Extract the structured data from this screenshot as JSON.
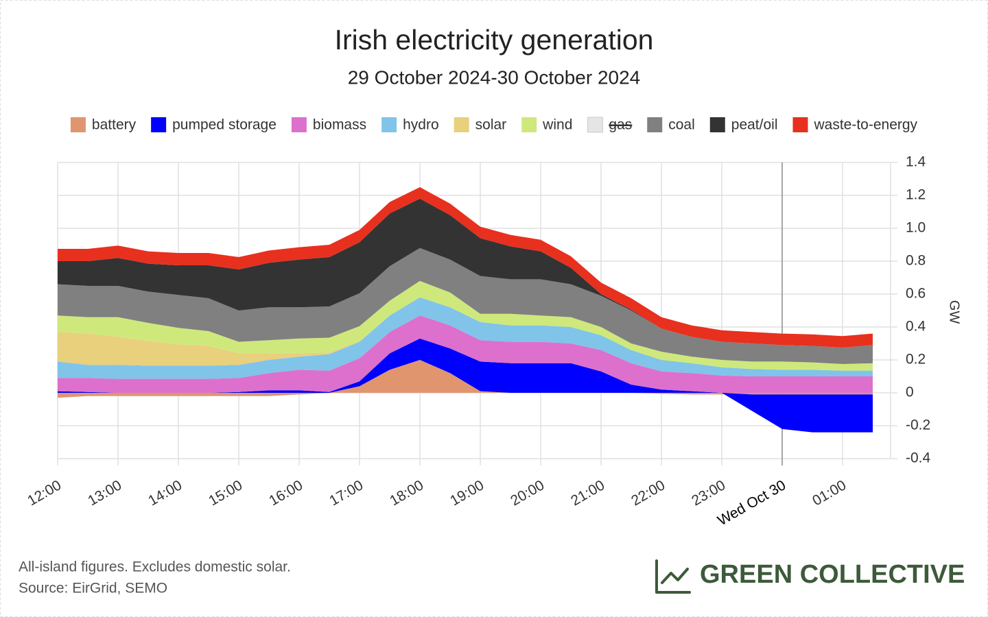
{
  "chart_data": {
    "type": "stacked-area",
    "title": "Irish electricity generation",
    "subtitle": "29 October 2024-30 October 2024",
    "y_label": "GW",
    "x": [
      "12:00",
      "12:30",
      "13:00",
      "13:30",
      "14:00",
      "14:30",
      "15:00",
      "15:30",
      "16:00",
      "16:30",
      "17:00",
      "17:30",
      "18:00",
      "18:30",
      "19:00",
      "19:30",
      "20:00",
      "20:30",
      "21:00",
      "21:30",
      "22:00",
      "22:30",
      "23:00",
      "23:30",
      "00:00",
      "00:30",
      "01:00",
      "01:30"
    ],
    "xticks": [
      "12:00",
      "13:00",
      "14:00",
      "15:00",
      "16:00",
      "17:00",
      "18:00",
      "19:00",
      "20:00",
      "21:00",
      "22:00",
      "23:00",
      "Wed Oct 30",
      "01:00"
    ],
    "ylim": [
      -0.4,
      1.4
    ],
    "yticks": [
      -0.4,
      -0.2,
      0,
      0.2,
      0.4,
      0.6,
      0.8,
      {
        "value": 1,
        "label": "1.0"
      },
      1.2,
      1.4
    ],
    "grid": true,
    "legend": "top",
    "series": [
      {
        "name": "battery",
        "color": "#e0956f",
        "values": [
          -0.03,
          -0.02,
          -0.02,
          -0.02,
          -0.02,
          -0.02,
          -0.02,
          -0.02,
          -0.01,
          0,
          0.04,
          0.14,
          0.2,
          0.12,
          0.01,
          0,
          0,
          0,
          0,
          0,
          -0.005,
          -0.01,
          -0.01,
          -0.01,
          -0.01,
          -0.01,
          -0.01,
          -0.01
        ]
      },
      {
        "name": "pumped storage",
        "color": "#0000ff",
        "values": [
          0.01,
          0.005,
          0,
          0,
          0,
          0,
          0.005,
          0.015,
          0.015,
          0.005,
          0.03,
          0.1,
          0.13,
          0.15,
          0.18,
          0.18,
          0.18,
          0.18,
          0.13,
          0.05,
          0.02,
          0.01,
          0,
          -0.1,
          -0.21,
          -0.23,
          -0.23,
          -0.23
        ]
      },
      {
        "name": "biomass",
        "color": "#dd70cc",
        "values": [
          0.08,
          0.085,
          0.085,
          0.085,
          0.085,
          0.085,
          0.085,
          0.105,
          0.125,
          0.13,
          0.14,
          0.13,
          0.14,
          0.14,
          0.13,
          0.13,
          0.13,
          0.12,
          0.13,
          0.13,
          0.11,
          0.11,
          0.105,
          0.1,
          0.1,
          0.1,
          0.1,
          0.1
        ]
      },
      {
        "name": "hydro",
        "color": "#80c4ea",
        "values": [
          0.1,
          0.08,
          0.085,
          0.08,
          0.08,
          0.08,
          0.08,
          0.08,
          0.08,
          0.1,
          0.1,
          0.1,
          0.11,
          0.11,
          0.11,
          0.1,
          0.1,
          0.1,
          0.09,
          0.08,
          0.07,
          0.06,
          0.05,
          0.045,
          0.04,
          0.04,
          0.035,
          0.035
        ]
      },
      {
        "name": "solar",
        "color": "#e8d07c",
        "values": [
          0.18,
          0.19,
          0.17,
          0.15,
          0.13,
          0.12,
          0.07,
          0.04,
          0.02,
          0.01,
          0.005,
          0,
          0,
          0,
          0,
          0,
          0,
          0,
          0,
          0,
          0,
          0,
          0,
          0,
          0,
          0,
          0,
          0
        ]
      },
      {
        "name": "wind",
        "color": "#cfe87c",
        "values": [
          0.1,
          0.1,
          0.12,
          0.11,
          0.1,
          0.09,
          0.07,
          0.08,
          0.09,
          0.09,
          0.09,
          0.09,
          0.1,
          0.09,
          0.05,
          0.07,
          0.06,
          0.06,
          0.05,
          0.04,
          0.05,
          0.04,
          0.045,
          0.045,
          0.05,
          0.045,
          0.04,
          0.045
        ]
      },
      {
        "name": "gas",
        "color": "#e5e5e5",
        "hidden": true
      },
      {
        "name": "coal",
        "color": "#808080",
        "values": [
          0.19,
          0.19,
          0.19,
          0.19,
          0.2,
          0.2,
          0.19,
          0.2,
          0.19,
          0.19,
          0.2,
          0.21,
          0.2,
          0.2,
          0.23,
          0.21,
          0.22,
          0.2,
          0.19,
          0.2,
          0.14,
          0.12,
          0.11,
          0.11,
          0.1,
          0.1,
          0.1,
          0.11
        ]
      },
      {
        "name": "peat/oil",
        "color": "#333333",
        "values": [
          0.14,
          0.15,
          0.17,
          0.17,
          0.18,
          0.2,
          0.25,
          0.27,
          0.29,
          0.3,
          0.31,
          0.32,
          0.3,
          0.27,
          0.23,
          0.2,
          0.17,
          0.1,
          0.01,
          0.005,
          0,
          0,
          0,
          0,
          0,
          0,
          0,
          0
        ]
      },
      {
        "name": "waste-to-energy",
        "color": "#e8301f",
        "values": [
          0.075,
          0.075,
          0.075,
          0.075,
          0.075,
          0.075,
          0.075,
          0.075,
          0.075,
          0.075,
          0.075,
          0.07,
          0.07,
          0.07,
          0.07,
          0.07,
          0.07,
          0.07,
          0.07,
          0.07,
          0.07,
          0.07,
          0.07,
          0.07,
          0.07,
          0.07,
          0.07,
          0.07
        ]
      }
    ]
  },
  "footer": {
    "note": "All-island figures. Excludes domestic solar.",
    "source": "Source: EirGrid, SEMO",
    "brand": "GREEN COLLECTIVE"
  }
}
